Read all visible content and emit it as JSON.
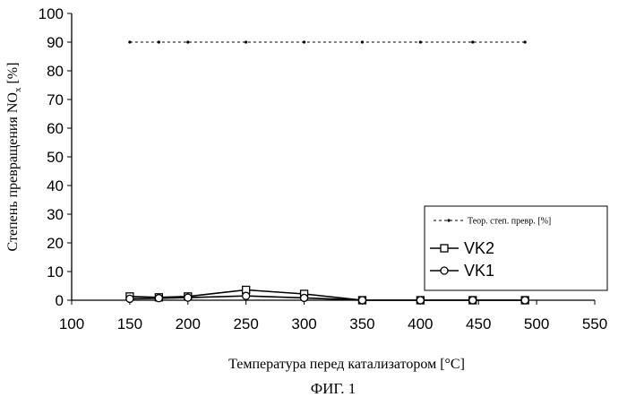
{
  "chart_data": {
    "type": "line",
    "title": "",
    "ylabel": "Степень превращения NO",
    "ylabel_sub": "x",
    "ylabel_unit": " [%]",
    "xlabel": "Температура перед катализатором [°C]",
    "caption": "ФИГ. 1",
    "xlim": [
      100,
      550
    ],
    "ylim": [
      0,
      100
    ],
    "xticks": [
      100,
      150,
      200,
      250,
      300,
      350,
      400,
      450,
      500,
      550
    ],
    "yticks": [
      0,
      10,
      20,
      30,
      40,
      50,
      60,
      70,
      80,
      90,
      100
    ],
    "grid": false,
    "legend_position": "lower-right",
    "series": [
      {
        "name": "Теор. степ. превр. [%]",
        "style": "dashed",
        "marker": "dot",
        "color": "#000000",
        "x": [
          150,
          175,
          200,
          250,
          300,
          350,
          400,
          445,
          490
        ],
        "y": [
          90,
          90,
          90,
          90,
          90,
          90,
          90,
          90,
          90
        ]
      },
      {
        "name": "VK2",
        "style": "solid",
        "marker": "square",
        "color": "#000000",
        "x": [
          150,
          175,
          200,
          250,
          300,
          350,
          400,
          445,
          490
        ],
        "y": [
          1.3,
          1,
          1.3,
          3.6,
          2.2,
          0,
          0,
          0,
          0
        ]
      },
      {
        "name": "VK1",
        "style": "solid",
        "marker": "circle",
        "color": "#000000",
        "x": [
          150,
          175,
          200,
          250,
          300,
          350,
          400,
          445,
          490
        ],
        "y": [
          0.5,
          0.7,
          0.9,
          1.5,
          0.8,
          0,
          0,
          0,
          0
        ]
      }
    ]
  }
}
